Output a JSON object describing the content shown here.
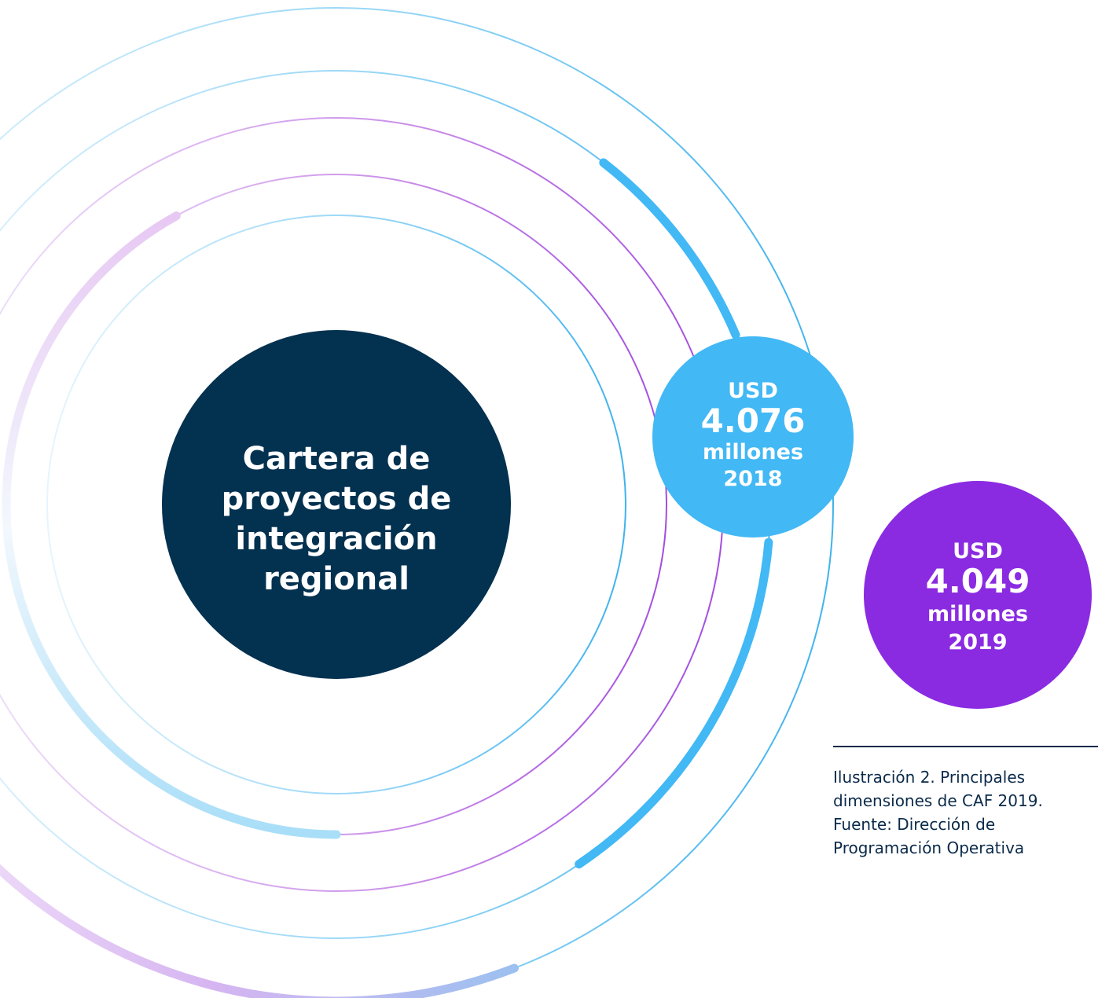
{
  "center": {
    "lines": [
      "Cartera de",
      "proyectos de",
      "integración",
      "regional"
    ]
  },
  "bubbles": [
    {
      "currency": "USD",
      "amount": "4.076",
      "unit": "millones",
      "year": "2018"
    },
    {
      "currency": "USD",
      "amount": "4.049",
      "unit": "millones",
      "year": "2019"
    }
  ],
  "caption": {
    "lines": [
      "Ilustración 2. Principales",
      "dimensiones de CAF 2019.",
      "Fuente: Dirección de",
      "Programación Operativa"
    ]
  }
}
